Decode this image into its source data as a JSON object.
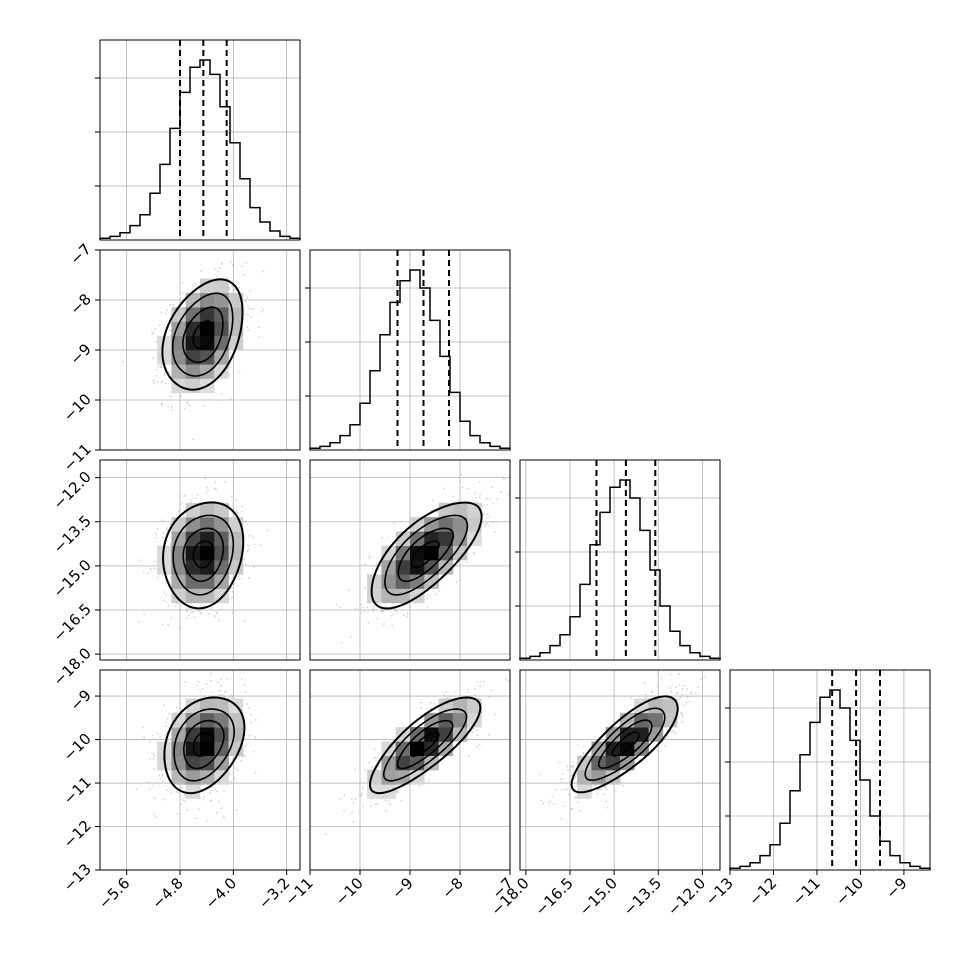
{
  "chart_data": {
    "type": "corner",
    "title": "",
    "parameters": [
      {
        "range": [
          -6.0,
          -3.0
        ],
        "ticks": [
          -5.6,
          -4.8,
          -4.0,
          -3.2
        ],
        "tick_labels": [
          "−5.6",
          "−4.8",
          "−4.0",
          "−3.2"
        ],
        "mean": -4.45,
        "sigma": 0.3,
        "quantiles": [
          -4.8,
          -4.45,
          -4.1
        ]
      },
      {
        "range": [
          -11,
          -7
        ],
        "ticks": [
          -11,
          -10,
          -9,
          -8,
          -7
        ],
        "tick_labels": [
          "−11",
          "−10",
          "−9",
          "−8",
          "−7"
        ],
        "mean": -8.7,
        "sigma": 0.55,
        "quantiles": [
          -9.25,
          -8.73,
          -8.22
        ]
      },
      {
        "range": [
          -18.2,
          -11.4
        ],
        "ticks": [
          -18.0,
          -16.5,
          -15.0,
          -13.5,
          -12.0
        ],
        "tick_labels": [
          "−18.0",
          "−16.5",
          "−15.0",
          "−13.5",
          "−12.0"
        ],
        "mean": -14.6,
        "sigma": 0.9,
        "quantiles": [
          -15.6,
          -14.6,
          -13.6
        ]
      },
      {
        "range": [
          -13,
          -8.4
        ],
        "ticks": [
          -13,
          -12,
          -11,
          -10,
          -9
        ],
        "tick_labels": [
          "−13",
          "−12",
          "−11",
          "−10",
          "−9"
        ],
        "mean": -10.1,
        "sigma": 0.55,
        "quantiles": [
          -10.65,
          -10.1,
          -9.55
        ]
      }
    ],
    "histograms": [
      {
        "param": 0,
        "bins": 20,
        "counts": [
          0.01,
          0.02,
          0.04,
          0.08,
          0.14,
          0.26,
          0.42,
          0.62,
          0.82,
          0.96,
          1.0,
          0.92,
          0.74,
          0.54,
          0.34,
          0.18,
          0.1,
          0.05,
          0.02,
          0.01
        ]
      },
      {
        "param": 1,
        "bins": 20,
        "counts": [
          0.01,
          0.02,
          0.04,
          0.08,
          0.14,
          0.26,
          0.44,
          0.64,
          0.82,
          0.94,
          1.0,
          0.9,
          0.72,
          0.52,
          0.32,
          0.16,
          0.08,
          0.04,
          0.02,
          0.01
        ]
      },
      {
        "param": 2,
        "bins": 20,
        "counts": [
          0.01,
          0.02,
          0.04,
          0.08,
          0.14,
          0.24,
          0.42,
          0.64,
          0.82,
          0.96,
          1.0,
          0.9,
          0.72,
          0.5,
          0.3,
          0.16,
          0.08,
          0.04,
          0.02,
          0.01
        ]
      },
      {
        "param": 3,
        "bins": 20,
        "counts": [
          0.01,
          0.02,
          0.04,
          0.08,
          0.14,
          0.26,
          0.44,
          0.64,
          0.82,
          0.96,
          1.0,
          0.9,
          0.72,
          0.5,
          0.3,
          0.16,
          0.08,
          0.04,
          0.02,
          0.01
        ]
      }
    ],
    "pairs": [
      {
        "x_param": 0,
        "y_param": 1,
        "correlation": 0.35
      },
      {
        "x_param": 0,
        "y_param": 2,
        "correlation": 0.15
      },
      {
        "x_param": 1,
        "y_param": 2,
        "correlation": 0.7
      },
      {
        "x_param": 0,
        "y_param": 3,
        "correlation": 0.3
      },
      {
        "x_param": 1,
        "y_param": 3,
        "correlation": 0.8
      },
      {
        "x_param": 2,
        "y_param": 3,
        "correlation": 0.8
      }
    ],
    "contour_levels_sigma": [
      0.5,
      1.0,
      1.5,
      2.0
    ],
    "grid": true,
    "quantiles": [
      0.16,
      0.5,
      0.84
    ],
    "colors": {
      "line": "#000000",
      "grid": "#b0b0b0",
      "points": "#b8b8b8",
      "density_dark": "#000000",
      "density_light": "#ffffff"
    }
  }
}
